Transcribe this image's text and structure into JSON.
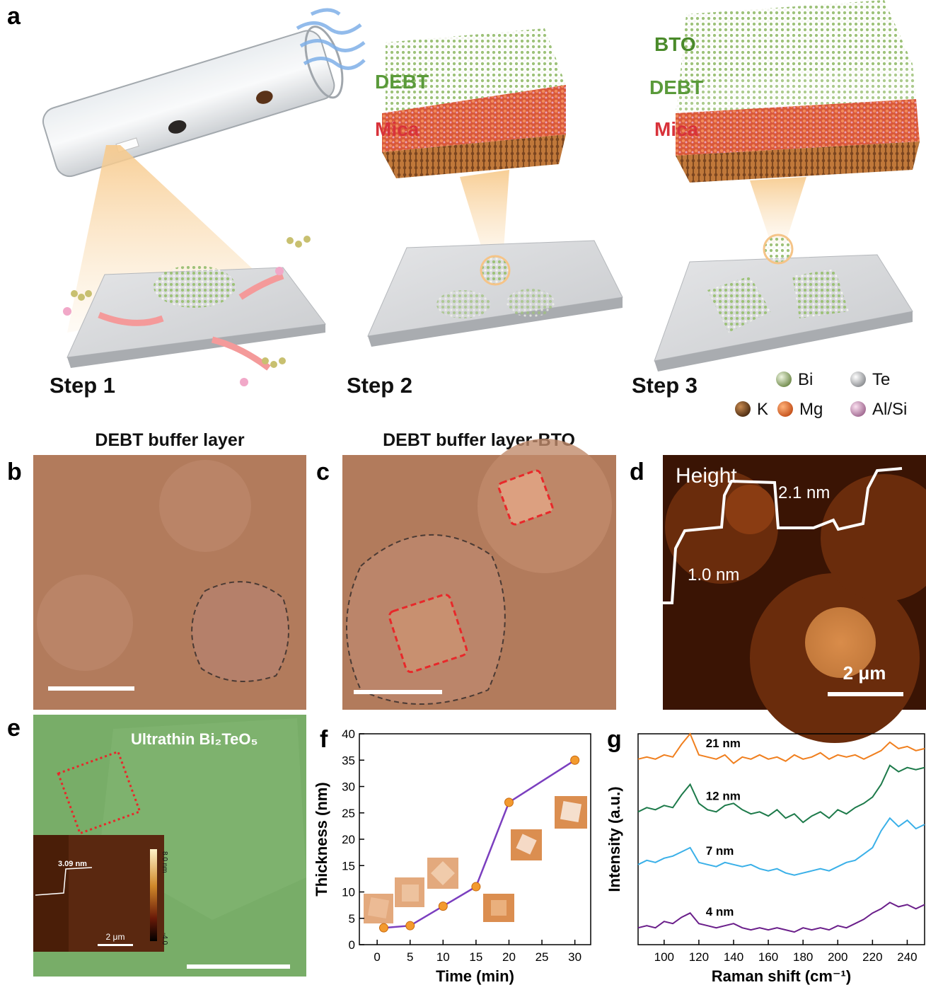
{
  "panel_labels": [
    "a",
    "b",
    "c",
    "d",
    "e",
    "f",
    "g"
  ],
  "panel_a": {
    "step2_layers": [
      "DEBT",
      "Mica"
    ],
    "step3_layers": [
      "BTO",
      "DEBT",
      "Mica"
    ],
    "steps": [
      "Step 1",
      "Step 2",
      "Step 3"
    ],
    "legend": [
      "Bi",
      "Te",
      "K",
      "Mg",
      "Al/Si"
    ]
  },
  "panel_b": {
    "title": "DEBT buffer layer"
  },
  "panel_c": {
    "title": "DEBT buffer layer-BTO"
  },
  "panel_d": {
    "label": "Height",
    "upper_step": "2.1 nm",
    "lower_step": "1.0 nm",
    "scale_bar": "2 μm"
  },
  "panel_e": {
    "label": "Ultrathin Bi₂TeO₅",
    "inset": {
      "step": "3.09 nm",
      "colorbar_top": "8.0 nm",
      "colorbar_bottom": "-4.0",
      "scale_bar": "2 μm"
    }
  },
  "chart_data": [
    {
      "type": "line",
      "xlabel": "Time (min)",
      "ylabel": "Thickness (nm)",
      "x": [
        1,
        5,
        10,
        15,
        20,
        30
      ],
      "values": [
        3.2,
        3.6,
        7.3,
        11,
        27,
        35
      ],
      "color": "#7b3fbf",
      "marker_color": "#f39a2e",
      "xlim": [
        -2.7,
        32.4
      ],
      "ylim": [
        0,
        40
      ],
      "xticks": [
        0,
        5,
        10,
        15,
        20,
        25,
        30
      ],
      "yticks": [
        0,
        5,
        10,
        15,
        20,
        25,
        30,
        35,
        40
      ]
    },
    {
      "type": "line",
      "xlabel": "Raman shift (cm⁻¹)",
      "ylabel": "Intensity (a.u.)",
      "x": [
        85,
        90,
        95,
        100,
        105,
        110,
        115,
        120,
        125,
        130,
        135,
        140,
        145,
        150,
        155,
        160,
        165,
        170,
        175,
        180,
        185,
        190,
        195,
        200,
        205,
        210,
        215,
        220,
        225,
        230,
        235,
        240,
        245,
        250
      ],
      "series": [
        {
          "name": "21 nm",
          "color": "#f07f1e",
          "values": [
            8.8,
            8.9,
            8.8,
            9.0,
            8.9,
            9.5,
            10.0,
            9.0,
            8.9,
            8.8,
            9.0,
            8.6,
            8.9,
            8.8,
            9.0,
            8.8,
            8.9,
            8.7,
            9.0,
            8.8,
            8.9,
            9.1,
            8.8,
            9.0,
            8.9,
            9.0,
            8.8,
            9.0,
            9.2,
            9.6,
            9.3,
            9.4,
            9.2,
            9.3
          ]
        },
        {
          "name": "12 nm",
          "color": "#1d7a4a",
          "values": [
            6.3,
            6.5,
            6.4,
            6.6,
            6.5,
            7.1,
            7.6,
            6.7,
            6.4,
            6.3,
            6.6,
            6.7,
            6.4,
            6.2,
            6.3,
            6.1,
            6.4,
            6.0,
            6.2,
            5.8,
            6.1,
            6.3,
            6.0,
            6.4,
            6.2,
            6.5,
            6.7,
            7.0,
            7.6,
            8.5,
            8.2,
            8.4,
            8.3,
            8.4
          ]
        },
        {
          "name": "7 nm",
          "color": "#3ab0e8",
          "values": [
            3.8,
            4.0,
            3.9,
            4.1,
            4.2,
            4.4,
            4.6,
            3.9,
            3.8,
            3.7,
            3.9,
            3.8,
            3.7,
            3.8,
            3.6,
            3.5,
            3.6,
            3.4,
            3.3,
            3.4,
            3.5,
            3.6,
            3.5,
            3.7,
            3.9,
            4.0,
            4.3,
            4.6,
            5.4,
            6.0,
            5.6,
            5.9,
            5.5,
            5.7
          ]
        },
        {
          "name": "4 nm",
          "color": "#6a1e8a",
          "values": [
            0.8,
            0.9,
            0.8,
            1.1,
            1.0,
            1.3,
            1.5,
            1.0,
            0.9,
            0.8,
            0.9,
            1.0,
            0.8,
            0.7,
            0.8,
            0.7,
            0.8,
            0.7,
            0.6,
            0.8,
            0.7,
            0.8,
            0.7,
            0.9,
            0.8,
            1.0,
            1.2,
            1.5,
            1.7,
            2.0,
            1.8,
            1.9,
            1.7,
            1.9
          ]
        }
      ],
      "xlim": [
        85,
        250
      ],
      "ylim": [
        0,
        10
      ],
      "xticks": [
        100,
        120,
        140,
        160,
        180,
        200,
        220,
        240
      ]
    }
  ]
}
